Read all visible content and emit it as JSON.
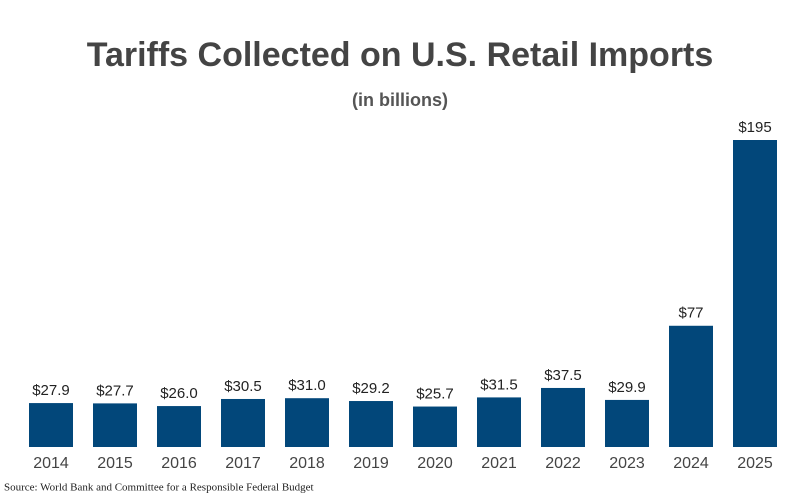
{
  "chart_data": {
    "type": "bar",
    "title": "Tariffs Collected on U.S. Retail Imports",
    "subtitle": "(in billions)",
    "categories": [
      "2014",
      "2015",
      "2016",
      "2017",
      "2018",
      "2019",
      "2020",
      "2021",
      "2022",
      "2023",
      "2024",
      "2025"
    ],
    "values": [
      27.9,
      27.7,
      26.0,
      30.5,
      31.0,
      29.2,
      25.7,
      31.5,
      37.5,
      29.9,
      77,
      195
    ],
    "value_labels": [
      "$27.9",
      "$27.7",
      "$26.0",
      "$30.5",
      "$31.0",
      "$29.2",
      "$25.7",
      "$31.5",
      "$37.5",
      "$29.9",
      "$77",
      "$195"
    ],
    "color": "#02477a",
    "source": "Source: World Bank and Committee for a Responsible Federal Budget"
  }
}
